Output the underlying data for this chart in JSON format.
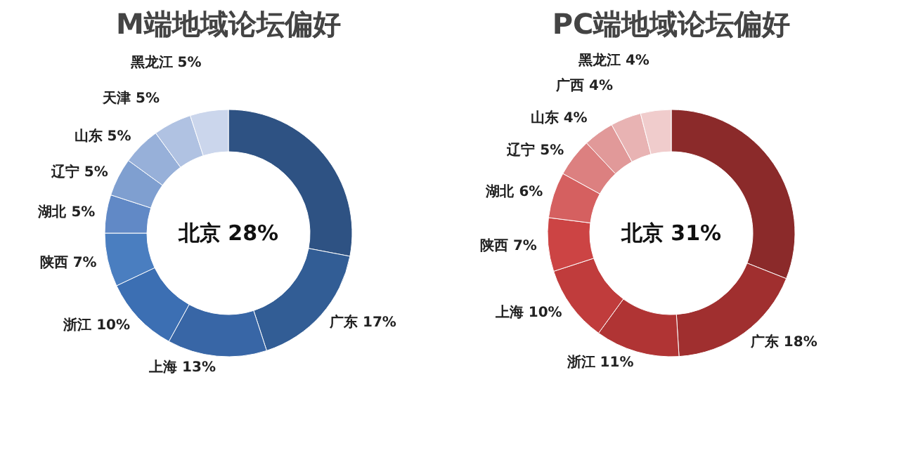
{
  "chart_data": [
    {
      "type": "donut",
      "title": "M端地域论坛偏好",
      "categories": [
        "北京",
        "广东",
        "上海",
        "浙江",
        "陕西",
        "湖北",
        "辽宁",
        "山东",
        "天津",
        "黑龙江"
      ],
      "values": [
        28,
        17,
        13,
        10,
        7,
        5,
        5,
        5,
        5,
        5
      ],
      "value_labels": [
        "28%",
        "17%",
        "13%",
        "10%",
        "7%",
        "5%",
        "5%",
        "5%",
        "5%",
        "5%"
      ],
      "colors": [
        "#2e5283",
        "#325d95",
        "#3866a6",
        "#3c6fb3",
        "#4a7ec0",
        "#6189c6",
        "#7f9fd0",
        "#97b0d9",
        "#b0c2e2",
        "#cbd6ec"
      ],
      "legend": false
    },
    {
      "type": "donut",
      "title": "PC端地域论坛偏好",
      "categories": [
        "北京",
        "广东",
        "浙江",
        "上海",
        "陕西",
        "湖北",
        "辽宁",
        "山东",
        "广西",
        "黑龙江"
      ],
      "values": [
        31,
        18,
        11,
        10,
        7,
        6,
        5,
        4,
        4,
        4
      ],
      "value_labels": [
        "31%",
        "18%",
        "11%",
        "10%",
        "7%",
        "6%",
        "5%",
        "4%",
        "4%",
        "4%"
      ],
      "colors": [
        "#8b2a2a",
        "#a02f2f",
        "#b03434",
        "#c03c3c",
        "#cc4444",
        "#d56060",
        "#dc8080",
        "#e19999",
        "#e8b3b3",
        "#f0cccc"
      ],
      "legend": false
    }
  ]
}
